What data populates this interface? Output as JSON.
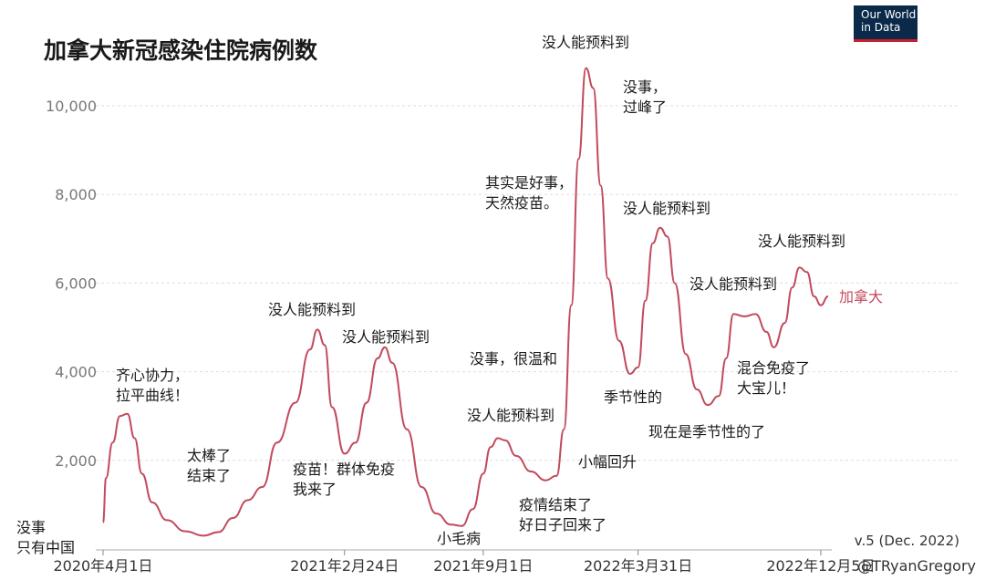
{
  "logo": {
    "line1": "Our World",
    "line2": "in Data",
    "bg_color": "#0b2a4a",
    "stripe_color": "#c4202f"
  },
  "footer": {
    "version": "v.5 (Dec. 2022)",
    "credit": "@TRyanGregory"
  },
  "chart_data": {
    "type": "line",
    "title": "加拿大新冠感染住院病例数",
    "xlabel": "",
    "ylabel": "",
    "line_color": "#c14a5c",
    "x_ticks": [
      "2020年4月1日",
      "2021年2月24日",
      "2021年9月1日",
      "2022年3月31日",
      "2022年12月5日"
    ],
    "y_ticks": [
      "2,000",
      "4,000",
      "6,000",
      "8,000",
      "10,000"
    ],
    "y_tick_values": [
      2000,
      4000,
      6000,
      8000,
      10000
    ],
    "ylim": [
      0,
      11000
    ],
    "grid": true,
    "series": [
      {
        "name": "加拿大",
        "points": [
          [
            "2020-04-01",
            600
          ],
          [
            "2020-04-05",
            1600
          ],
          [
            "2020-04-14",
            2400
          ],
          [
            "2020-04-24",
            3000
          ],
          [
            "2020-05-04",
            3050
          ],
          [
            "2020-05-14",
            2500
          ],
          [
            "2020-05-24",
            1700
          ],
          [
            "2020-06-07",
            1050
          ],
          [
            "2020-06-27",
            650
          ],
          [
            "2020-07-22",
            400
          ],
          [
            "2020-08-16",
            300
          ],
          [
            "2020-09-05",
            380
          ],
          [
            "2020-09-25",
            700
          ],
          [
            "2020-10-15",
            1100
          ],
          [
            "2020-11-04",
            1400
          ],
          [
            "2020-11-24",
            2400
          ],
          [
            "2020-12-19",
            3300
          ],
          [
            "2021-01-08",
            4500
          ],
          [
            "2021-01-18",
            4950
          ],
          [
            "2021-01-28",
            4600
          ],
          [
            "2021-02-07",
            3200
          ],
          [
            "2021-02-24",
            2150
          ],
          [
            "2021-03-11",
            2400
          ],
          [
            "2021-03-26",
            3300
          ],
          [
            "2021-04-10",
            4300
          ],
          [
            "2021-04-20",
            4550
          ],
          [
            "2021-04-30",
            4200
          ],
          [
            "2021-05-20",
            2700
          ],
          [
            "2021-06-09",
            1400
          ],
          [
            "2021-06-29",
            800
          ],
          [
            "2021-07-19",
            550
          ],
          [
            "2021-08-03",
            520
          ],
          [
            "2021-08-18",
            900
          ],
          [
            "2021-09-01",
            1700
          ],
          [
            "2021-09-11",
            2300
          ],
          [
            "2021-09-21",
            2500
          ],
          [
            "2021-10-01",
            2450
          ],
          [
            "2021-10-16",
            2100
          ],
          [
            "2021-11-05",
            1750
          ],
          [
            "2021-11-25",
            1550
          ],
          [
            "2021-12-10",
            1650
          ],
          [
            "2021-12-20",
            2700
          ],
          [
            "2021-12-30",
            5500
          ],
          [
            "2022-01-09",
            8800
          ],
          [
            "2022-01-19",
            10850
          ],
          [
            "2022-01-29",
            10400
          ],
          [
            "2022-02-08",
            8200
          ],
          [
            "2022-02-18",
            6100
          ],
          [
            "2022-03-05",
            4700
          ],
          [
            "2022-03-20",
            3950
          ],
          [
            "2022-03-31",
            4100
          ],
          [
            "2022-04-10",
            5600
          ],
          [
            "2022-04-20",
            6900
          ],
          [
            "2022-04-30",
            7250
          ],
          [
            "2022-05-10",
            7050
          ],
          [
            "2022-05-20",
            6000
          ],
          [
            "2022-06-04",
            4400
          ],
          [
            "2022-06-19",
            3600
          ],
          [
            "2022-07-04",
            3250
          ],
          [
            "2022-07-19",
            3450
          ],
          [
            "2022-07-29",
            4300
          ],
          [
            "2022-08-08",
            5300
          ],
          [
            "2022-08-23",
            5250
          ],
          [
            "2022-09-07",
            5300
          ],
          [
            "2022-09-22",
            4900
          ],
          [
            "2022-10-02",
            4550
          ],
          [
            "2022-10-17",
            5100
          ],
          [
            "2022-10-27",
            5900
          ],
          [
            "2022-11-06",
            6350
          ],
          [
            "2022-11-16",
            6250
          ],
          [
            "2022-11-26",
            5700
          ],
          [
            "2022-12-05",
            5500
          ],
          [
            "2022-12-15",
            5700
          ]
        ]
      }
    ],
    "annotations": [
      {
        "text": "没事\n只有中国"
      },
      {
        "text": "齐心协力，\n拉平曲线！"
      },
      {
        "text": "太棒了\n结束了"
      },
      {
        "text": "没人能预料到"
      },
      {
        "text": "疫苗！群体免疫\n我来了"
      },
      {
        "text": "没人能预料到"
      },
      {
        "text": "小毛病"
      },
      {
        "text": "没事，很温和"
      },
      {
        "text": "没人能预料到"
      },
      {
        "text": "疫情结束了\n好日子回来了"
      },
      {
        "text": "其实是好事，\n天然疫苗。"
      },
      {
        "text": "没人能预料到"
      },
      {
        "text": "没事，\n过峰了"
      },
      {
        "text": "小幅回升"
      },
      {
        "text": "没人能预料到"
      },
      {
        "text": "季节性的"
      },
      {
        "text": "没人能预料到"
      },
      {
        "text": "现在是季节性的了"
      },
      {
        "text": "混合免疫了\n大宝儿！"
      },
      {
        "text": "没人能预料到"
      }
    ]
  }
}
